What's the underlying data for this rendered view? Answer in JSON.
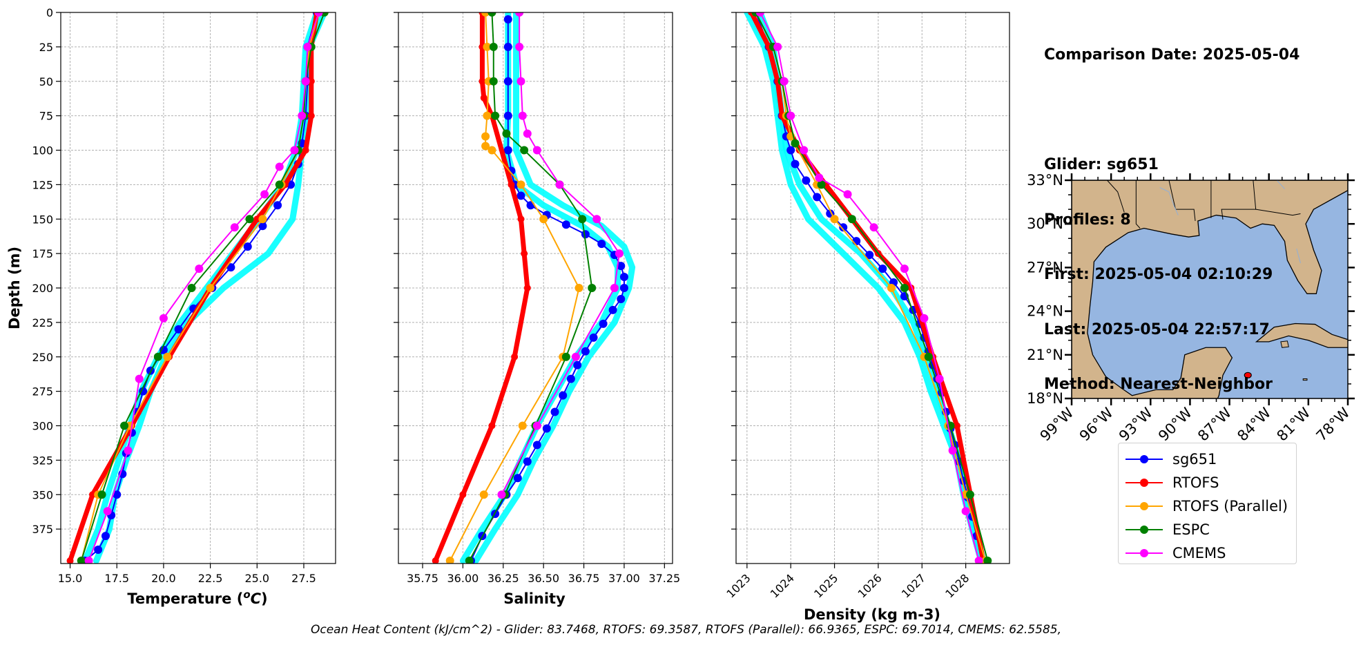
{
  "series_styles": [
    {
      "name": "sg651",
      "color": "#0000ff",
      "width": 2,
      "marker": 6
    },
    {
      "name": "RTOFS",
      "color": "#ff0000",
      "width": 7,
      "marker": 5
    },
    {
      "name": "RTOFS (Parallel)",
      "color": "#ffa500",
      "width": 2,
      "marker": 6
    },
    {
      "name": "ESPC",
      "color": "#008000",
      "width": 2,
      "marker": 6
    },
    {
      "name": "CMEMS",
      "color": "#ff00ff",
      "width": 2,
      "marker": 6
    }
  ],
  "glider_cloud_color": "#00ffff",
  "chart_data": [
    {
      "type": "line",
      "xlabel": "Temperature (°C)",
      "ylabel": "Depth (m)",
      "xlim": [
        14.5,
        29.2
      ],
      "xticks": [
        15.0,
        17.5,
        20.0,
        22.5,
        25.0,
        27.5
      ],
      "xtick_labels": [
        "15.0",
        "17.5",
        "20.0",
        "22.5",
        "25.0",
        "27.5"
      ],
      "ylim": [
        400,
        0
      ],
      "yticks": [
        0,
        25,
        50,
        75,
        100,
        125,
        150,
        175,
        200,
        225,
        250,
        275,
        300,
        325,
        350,
        375
      ],
      "grid": true,
      "glider_cloud": [
        {
          "depth": [
            0,
            25,
            50,
            75,
            100,
            125,
            150,
            175,
            200,
            225,
            250,
            275,
            300,
            325,
            350,
            375,
            398
          ],
          "x": [
            28.6,
            27.8,
            27.7,
            27.6,
            27.4,
            27.2,
            26.9,
            25.6,
            23.2,
            21.3,
            20.1,
            19.3,
            18.7,
            18.0,
            17.4,
            17.1,
            16.4
          ]
        },
        {
          "depth": [
            0,
            25,
            50,
            75,
            100,
            125,
            150,
            175,
            200,
            225,
            250,
            275,
            300,
            325,
            350,
            375,
            398
          ],
          "x": [
            28.2,
            27.6,
            27.5,
            27.4,
            27.1,
            26.4,
            25.1,
            23.7,
            22.3,
            20.9,
            19.7,
            18.8,
            18.2,
            17.6,
            17.0,
            16.5,
            15.8
          ]
        }
      ],
      "series": [
        {
          "name": "sg651",
          "x": [
            28.2,
            27.7,
            27.7,
            27.6,
            27.4,
            27.2,
            26.8,
            26.1,
            25.3,
            24.5,
            23.6,
            22.6,
            21.6,
            20.8,
            20.0,
            19.3,
            18.9,
            18.6,
            18.3,
            18.0,
            17.8,
            17.5,
            17.2,
            16.9,
            16.5,
            15.8
          ],
          "depth": [
            0,
            25,
            50,
            75,
            95,
            110,
            125,
            140,
            155,
            170,
            185,
            200,
            215,
            230,
            245,
            260,
            275,
            290,
            305,
            320,
            335,
            350,
            365,
            380,
            390,
            398
          ]
        },
        {
          "name": "RTOFS",
          "x": [
            28.2,
            27.9,
            27.9,
            27.9,
            27.6,
            26.5,
            25.0,
            22.5,
            20.3,
            18.3,
            16.2,
            15.0
          ],
          "depth": [
            0,
            25,
            50,
            75,
            100,
            125,
            150,
            200,
            250,
            300,
            350,
            398
          ]
        },
        {
          "name": "RTOFS (Parallel)",
          "x": [
            28.3,
            27.8,
            27.6,
            27.5,
            27.2,
            26.3,
            25.3,
            22.5,
            20.2,
            18.2,
            16.5,
            15.6
          ],
          "depth": [
            0,
            25,
            50,
            75,
            100,
            125,
            150,
            200,
            250,
            300,
            350,
            398
          ]
        },
        {
          "name": "ESPC",
          "x": [
            28.6,
            27.9,
            27.6,
            27.5,
            27.2,
            26.2,
            24.6,
            21.5,
            19.7,
            17.9,
            16.7,
            15.6
          ],
          "depth": [
            0,
            25,
            50,
            75,
            100,
            125,
            150,
            200,
            250,
            300,
            350,
            398
          ]
        },
        {
          "name": "CMEMS",
          "x": [
            28.3,
            27.7,
            27.6,
            27.4,
            27.0,
            26.2,
            25.4,
            23.8,
            21.9,
            20.0,
            18.7,
            18.1,
            17.0,
            16.0
          ],
          "depth": [
            0,
            25,
            50,
            75,
            100,
            112,
            132,
            156,
            186,
            222,
            266,
            318,
            362,
            398
          ]
        }
      ]
    },
    {
      "type": "line",
      "xlabel": "Salinity",
      "xlim": [
        35.6,
        37.3
      ],
      "xticks": [
        35.75,
        36.0,
        36.25,
        36.5,
        36.75,
        37.0,
        37.25
      ],
      "xtick_labels": [
        "35.75",
        "36.00",
        "36.25",
        "36.50",
        "36.75",
        "37.00",
        "37.25"
      ],
      "ylim": [
        400,
        0
      ],
      "yticks": [
        0,
        25,
        50,
        75,
        100,
        125,
        150,
        175,
        200,
        225,
        250,
        275,
        300,
        325,
        350,
        375
      ],
      "grid": true,
      "glider_cloud": [
        {
          "depth": [
            0,
            25,
            50,
            75,
            100,
            125,
            140,
            155,
            170,
            185,
            200,
            225,
            250,
            275,
            300,
            325,
            350,
            375,
            398
          ],
          "x": [
            36.33,
            36.33,
            36.33,
            36.33,
            36.33,
            36.42,
            36.62,
            36.86,
            37.0,
            37.05,
            37.03,
            36.94,
            36.78,
            36.66,
            36.56,
            36.44,
            36.34,
            36.2,
            36.08
          ]
        },
        {
          "depth": [
            0,
            25,
            50,
            75,
            100,
            125,
            140,
            155,
            170,
            185,
            200,
            225,
            250,
            275,
            300,
            325,
            350,
            375,
            398
          ],
          "x": [
            36.28,
            36.28,
            36.28,
            36.28,
            36.27,
            36.33,
            36.5,
            36.74,
            36.9,
            36.96,
            36.96,
            36.86,
            36.7,
            36.58,
            36.46,
            36.36,
            36.26,
            36.12,
            36.0
          ]
        }
      ],
      "series": [
        {
          "name": "sg651",
          "x": [
            36.28,
            36.28,
            36.28,
            36.28,
            36.28,
            36.3,
            36.32,
            36.36,
            36.42,
            36.52,
            36.64,
            36.76,
            36.86,
            36.94,
            36.98,
            37.0,
            37.0,
            36.98,
            36.93,
            36.87,
            36.81,
            36.76,
            36.71,
            36.67,
            36.62,
            36.57,
            36.52,
            36.46,
            36.4,
            36.34,
            36.27,
            36.2,
            36.12,
            36.05
          ],
          "depth": [
            5,
            25,
            50,
            75,
            100,
            115,
            125,
            133,
            140,
            147,
            154,
            161,
            168,
            176,
            184,
            192,
            200,
            208,
            216,
            226,
            236,
            246,
            256,
            266,
            278,
            290,
            302,
            314,
            326,
            338,
            350,
            364,
            380,
            398
          ]
        },
        {
          "name": "RTOFS",
          "x": [
            36.12,
            36.12,
            36.12,
            36.13,
            36.18,
            36.3,
            36.36,
            36.38,
            36.4,
            36.32,
            36.18,
            36.0,
            35.83
          ],
          "depth": [
            0,
            25,
            50,
            62,
            75,
            125,
            150,
            175,
            200,
            250,
            300,
            350,
            398
          ]
        },
        {
          "name": "RTOFS (Parallel)",
          "x": [
            36.14,
            36.15,
            36.16,
            36.15,
            36.14,
            36.14,
            36.18,
            36.36,
            36.5,
            36.72,
            36.62,
            36.37,
            36.13,
            35.92
          ],
          "depth": [
            0,
            25,
            50,
            75,
            90,
            97,
            100,
            125,
            150,
            200,
            250,
            300,
            350,
            398
          ]
        },
        {
          "name": "ESPC",
          "x": [
            36.18,
            36.19,
            36.19,
            36.2,
            36.27,
            36.38,
            36.6,
            36.74,
            36.8,
            36.64,
            36.45,
            36.26,
            36.04
          ],
          "depth": [
            0,
            25,
            50,
            75,
            88,
            100,
            125,
            150,
            200,
            250,
            300,
            350,
            398
          ]
        },
        {
          "name": "CMEMS",
          "x": [
            36.35,
            36.35,
            36.36,
            36.37,
            36.4,
            36.46,
            36.6,
            36.83,
            36.97,
            36.94,
            36.7,
            36.46,
            36.24
          ],
          "depth": [
            0,
            25,
            50,
            75,
            88,
            100,
            125,
            150,
            175,
            200,
            250,
            300,
            350
          ]
        }
      ]
    },
    {
      "type": "line",
      "xlabel": "Density (kg m-3)",
      "xlim": [
        1022.75,
        1029.0
      ],
      "xticks": [
        1023,
        1024,
        1025,
        1026,
        1027,
        1028
      ],
      "xtick_labels": [
        "1023",
        "1024",
        "1025",
        "1026",
        "1027",
        "1028"
      ],
      "ylim": [
        400,
        0
      ],
      "yticks": [
        0,
        25,
        50,
        75,
        100,
        125,
        150,
        175,
        200,
        225,
        250,
        275,
        300,
        325,
        350,
        375
      ],
      "grid": true,
      "glider_cloud": [
        {
          "depth": [
            0,
            25,
            50,
            75,
            100,
            125,
            150,
            175,
            200,
            225,
            250,
            275,
            300,
            325,
            350,
            375,
            398
          ],
          "x": [
            1023.3,
            1023.6,
            1023.7,
            1023.8,
            1023.9,
            1024.2,
            1024.7,
            1025.6,
            1026.3,
            1026.8,
            1027.1,
            1027.35,
            1027.6,
            1027.85,
            1028.0,
            1028.2,
            1028.4
          ]
        },
        {
          "depth": [
            0,
            25,
            50,
            75,
            100,
            125,
            150,
            175,
            200,
            225,
            250,
            275,
            300,
            325,
            350,
            375,
            398
          ],
          "x": [
            1023.0,
            1023.4,
            1023.6,
            1023.7,
            1023.8,
            1024.0,
            1024.4,
            1025.2,
            1026.0,
            1026.6,
            1026.95,
            1027.2,
            1027.5,
            1027.8,
            1027.95,
            1028.15,
            1028.35
          ]
        }
      ],
      "series": [
        {
          "name": "sg651",
          "x": [
            1023.2,
            1023.5,
            1023.7,
            1023.8,
            1023.9,
            1024.0,
            1024.1,
            1024.35,
            1024.6,
            1024.9,
            1025.2,
            1025.5,
            1025.8,
            1026.1,
            1026.35,
            1026.6,
            1026.8,
            1026.95,
            1027.05,
            1027.15,
            1027.25,
            1027.35,
            1027.45,
            1027.55,
            1027.65,
            1027.75,
            1027.85,
            1027.95,
            1028.05,
            1028.15,
            1028.25,
            1028.4
          ],
          "depth": [
            0,
            25,
            50,
            75,
            90,
            100,
            110,
            122,
            134,
            146,
            156,
            166,
            176,
            186,
            196,
            206,
            216,
            226,
            236,
            246,
            256,
            266,
            276,
            290,
            302,
            314,
            326,
            340,
            352,
            366,
            380,
            398
          ]
        },
        {
          "name": "RTOFS",
          "x": [
            1023.1,
            1023.5,
            1023.7,
            1023.8,
            1024.2,
            1024.8,
            1025.4,
            1026.0,
            1026.75,
            1027.25,
            1027.8,
            1028.4
          ],
          "depth": [
            0,
            25,
            50,
            75,
            100,
            125,
            150,
            175,
            200,
            250,
            300,
            398
          ]
        },
        {
          "name": "RTOFS (Parallel)",
          "x": [
            1023.2,
            1023.6,
            1023.8,
            1023.9,
            1024.0,
            1024.6,
            1025.0,
            1026.3,
            1027.05,
            1027.6,
            1028.0,
            1028.45
          ],
          "depth": [
            0,
            25,
            50,
            75,
            90,
            125,
            150,
            200,
            250,
            300,
            350,
            398
          ]
        },
        {
          "name": "ESPC",
          "x": [
            1023.2,
            1023.6,
            1023.8,
            1023.95,
            1024.1,
            1024.7,
            1025.4,
            1026.6,
            1027.15,
            1027.65,
            1028.1,
            1028.5
          ],
          "depth": [
            0,
            25,
            50,
            75,
            95,
            125,
            150,
            200,
            250,
            300,
            350,
            398
          ]
        },
        {
          "name": "CMEMS",
          "x": [
            1023.3,
            1023.7,
            1023.85,
            1024.0,
            1024.3,
            1024.65,
            1025.3,
            1025.9,
            1026.6,
            1027.05,
            1027.4,
            1027.7,
            1028.0,
            1028.3
          ],
          "depth": [
            0,
            25,
            50,
            75,
            100,
            120,
            132,
            156,
            186,
            222,
            266,
            318,
            362,
            398
          ]
        }
      ]
    },
    {
      "type": "map",
      "lon_range": [
        -99,
        -78
      ],
      "lat_range": [
        18,
        33
      ],
      "xticks": [
        "99°W",
        "96°W",
        "93°W",
        "90°W",
        "87°W",
        "84°W",
        "81°W",
        "78°W"
      ],
      "yticks": [
        "33°N",
        "30°N",
        "27°N",
        "24°N",
        "21°N",
        "18°N"
      ],
      "land_color": "#d2b48c",
      "ocean_color": "#96b6e1",
      "marker": {
        "lon": -85.6,
        "lat": 19.6,
        "color": "#ff0000"
      }
    }
  ],
  "info": {
    "line1": "Comparison Date: 2025-05-04",
    "line2": "",
    "line3": "Glider: sg651",
    "line4": "Profiles: 8",
    "line5": "First: 2025-05-04 02:10:29",
    "line6": "Last: 2025-05-04 22:57:17",
    "line7": "Method: Nearest-Neighbor"
  },
  "legend": [
    {
      "label": "sg651",
      "color": "#0000ff"
    },
    {
      "label": "RTOFS",
      "color": "#ff0000"
    },
    {
      "label": "RTOFS (Parallel)",
      "color": "#ffa500"
    },
    {
      "label": "ESPC",
      "color": "#008000"
    },
    {
      "label": "CMEMS",
      "color": "#ff00ff"
    }
  ],
  "footer": "Ocean Heat Content (kJ/cm^2) - Glider: 83.7468,  RTOFS: 69.3587,  RTOFS (Parallel): 66.9365,  ESPC: 69.7014,  CMEMS: 62.5585,"
}
